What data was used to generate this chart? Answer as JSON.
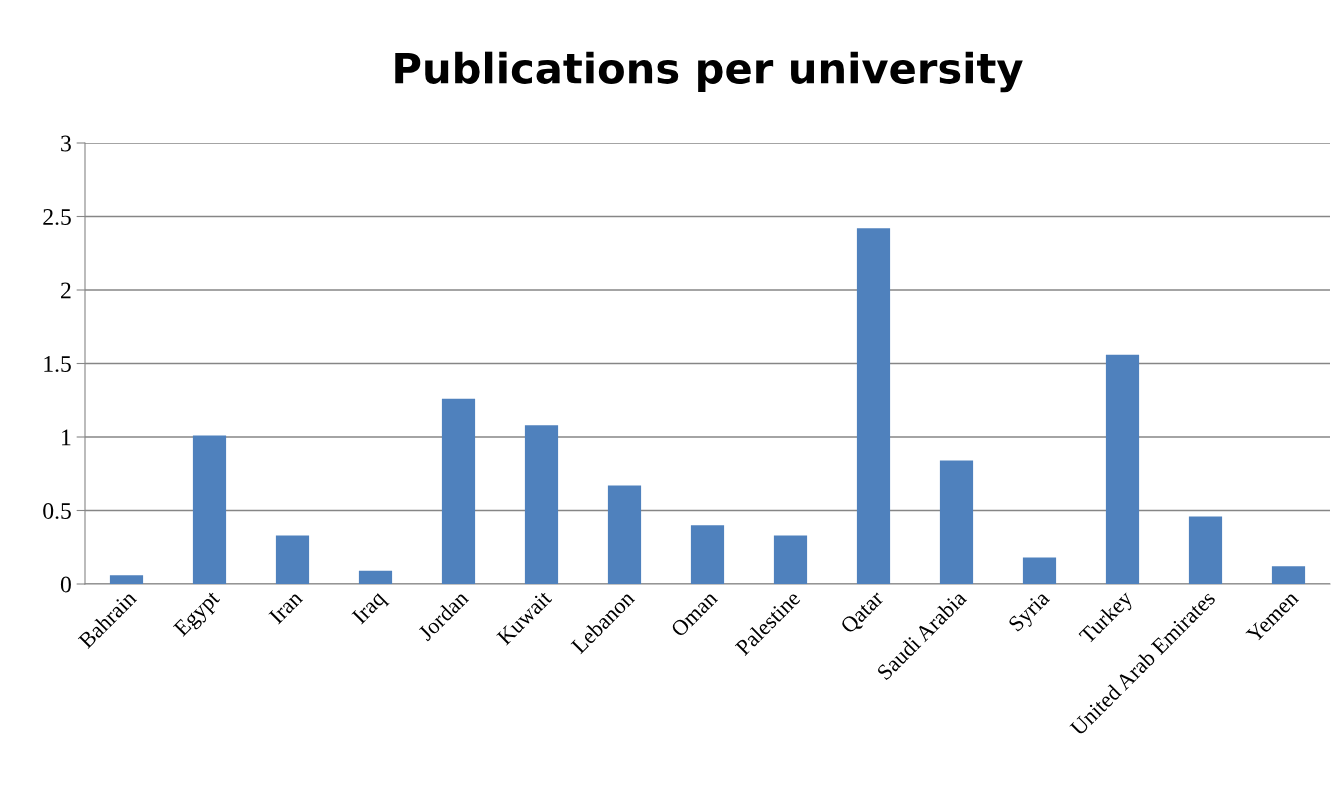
{
  "chart_data": {
    "type": "bar",
    "title": "Publications per university",
    "categories": [
      "Bahrain",
      "Egypt",
      "Iran",
      "Iraq",
      "Jordan",
      "Kuwait",
      "Lebanon",
      "Oman",
      "Palestine",
      "Qatar",
      "Saudi Arabia",
      "Syria",
      "Turkey",
      "United Arab Emirates",
      "Yemen"
    ],
    "values": [
      0.06,
      1.01,
      0.33,
      0.09,
      1.26,
      1.08,
      0.67,
      0.4,
      0.33,
      2.42,
      0.84,
      0.18,
      1.56,
      0.46,
      0.12
    ],
    "color": "#4f81bd",
    "ylim": [
      0,
      3
    ],
    "yticks": [
      0,
      0.5,
      1,
      1.5,
      2,
      2.5,
      3
    ],
    "grid": "y",
    "legend": false
  }
}
